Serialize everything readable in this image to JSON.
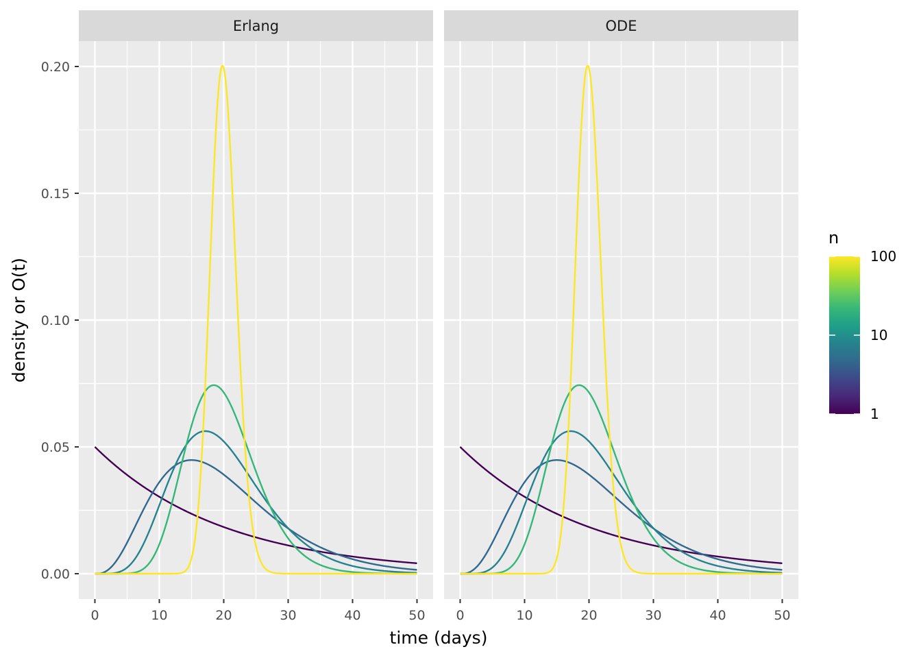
{
  "chart_data": {
    "type": "line",
    "xlabel": "time (days)",
    "ylabel": "density or O(t)",
    "xlim": [
      -2.5,
      52.5
    ],
    "ylim": [
      -0.01,
      0.21
    ],
    "x_ticks": [
      0,
      10,
      20,
      30,
      40,
      50
    ],
    "x_tick_labels": [
      "0",
      "10",
      "20",
      "30",
      "40",
      "50"
    ],
    "y_ticks": [
      0,
      0.05,
      0.1,
      0.15,
      0.2
    ],
    "y_tick_labels": [
      "0.00",
      "0.05",
      "0.10",
      "0.15",
      "0.20"
    ],
    "grid": true,
    "mean": 20,
    "facets": [
      {
        "label": "Erlang"
      },
      {
        "label": "ODE"
      }
    ],
    "series": [
      {
        "n": 1,
        "color": "#440154"
      },
      {
        "n": 4,
        "color": "#31688e"
      },
      {
        "n": 7,
        "color": "#26828e"
      },
      {
        "n": 13,
        "color": "#35b779"
      },
      {
        "n": 100,
        "color": "#fde725"
      }
    ],
    "legend": {
      "title": "n",
      "position": "right",
      "scale": "log",
      "breaks": [
        1,
        10,
        100
      ],
      "break_labels": [
        "1",
        "10",
        "100"
      ],
      "colors": [
        "#440154",
        "#482878",
        "#3e4989",
        "#31688e",
        "#26828e",
        "#1f9e89",
        "#35b779",
        "#6ece58",
        "#b5de2b",
        "#fde725"
      ]
    }
  }
}
